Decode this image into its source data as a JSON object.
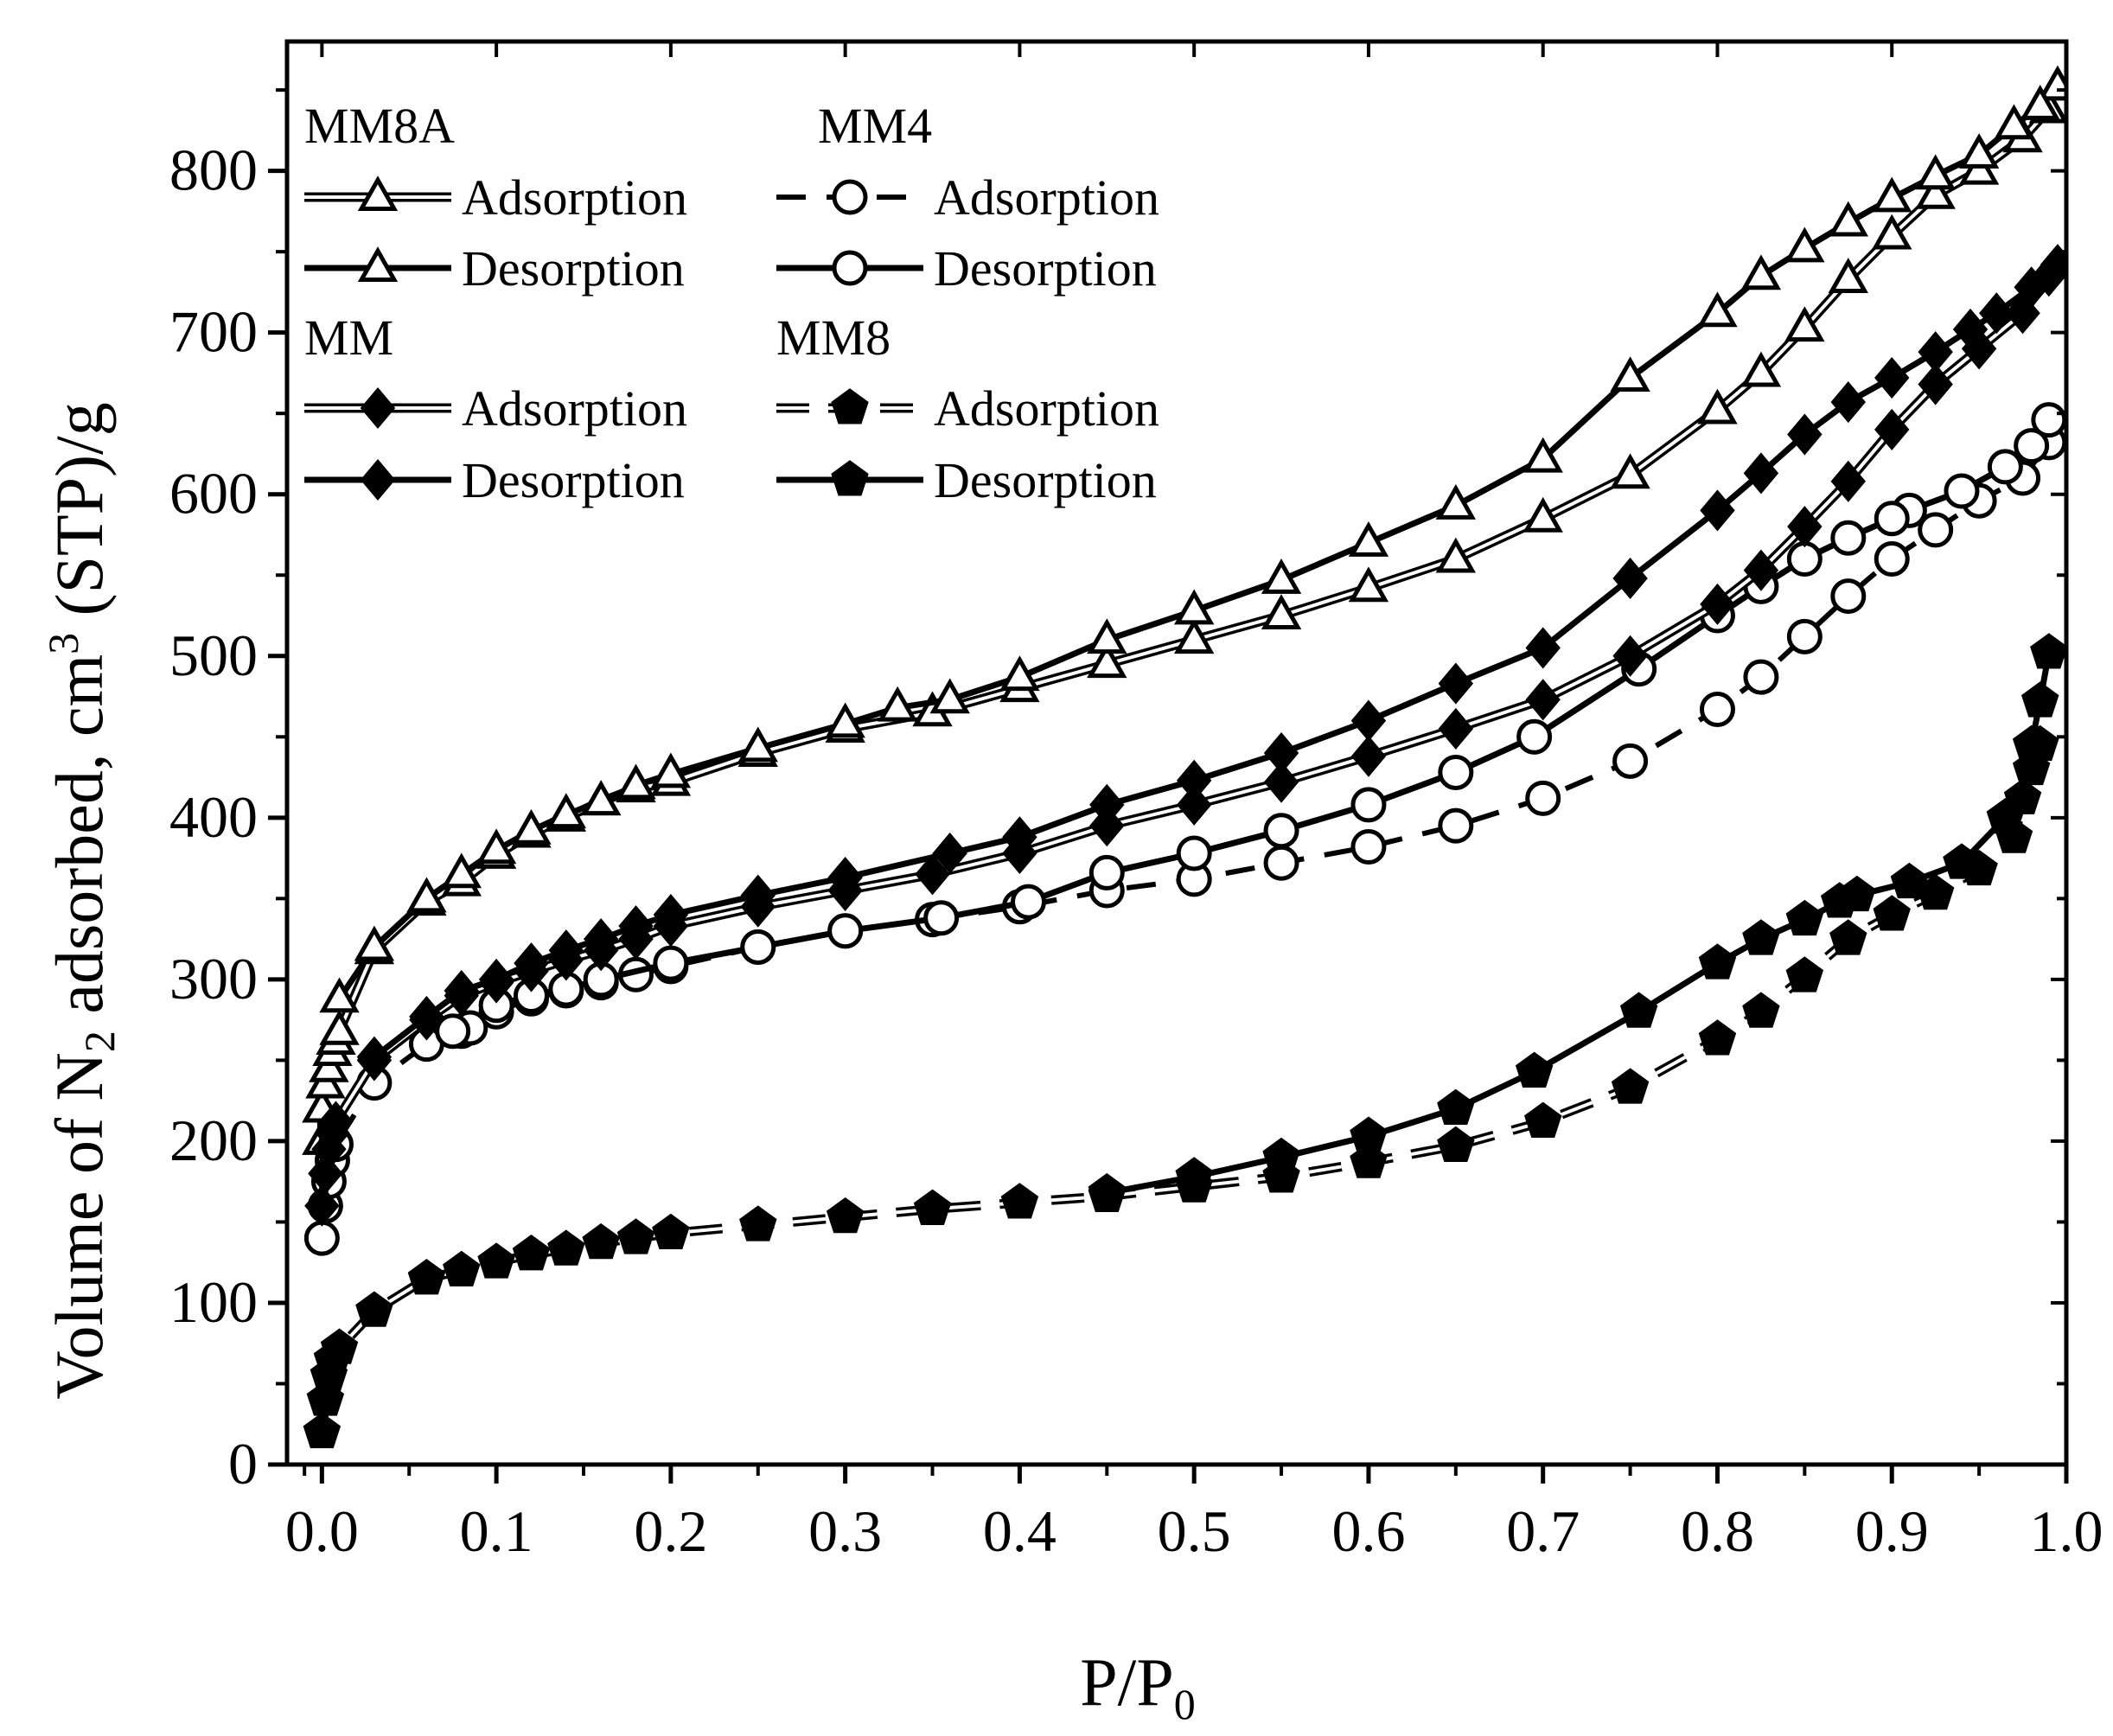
{
  "chart_data": {
    "type": "line",
    "title": "",
    "xlabel": {
      "main": "P/P",
      "sub": "0"
    },
    "ylabel": {
      "part1": "Volume of N",
      "sub": "2",
      "part2": " adsorbed, cm",
      "sup": "3",
      "part3": " (STP)/g"
    },
    "xlim": [
      -0.02,
      1.0
    ],
    "ylim": [
      0,
      880
    ],
    "xticks": [
      {
        "v": 0.0,
        "label": "0.0"
      },
      {
        "v": 0.1,
        "label": "0.1"
      },
      {
        "v": 0.2,
        "label": "0.2"
      },
      {
        "v": 0.3,
        "label": "0.3"
      },
      {
        "v": 0.4,
        "label": "0.4"
      },
      {
        "v": 0.5,
        "label": "0.5"
      },
      {
        "v": 0.6,
        "label": "0.6"
      },
      {
        "v": 0.7,
        "label": "0.7"
      },
      {
        "v": 0.8,
        "label": "0.8"
      },
      {
        "v": 0.9,
        "label": "0.9"
      },
      {
        "v": 1.0,
        "label": "1.0"
      }
    ],
    "yticks": [
      {
        "v": 0,
        "label": "0"
      },
      {
        "v": 100,
        "label": "100"
      },
      {
        "v": 200,
        "label": "200"
      },
      {
        "v": 300,
        "label": "300"
      },
      {
        "v": 400,
        "label": "400"
      },
      {
        "v": 500,
        "label": "500"
      },
      {
        "v": 600,
        "label": "600"
      },
      {
        "v": 700,
        "label": "700"
      },
      {
        "v": 800,
        "label": "800"
      }
    ],
    "legend_position": "top-left",
    "legend_groups": [
      {
        "title": "MM8A",
        "entries": [
          {
            "label": "Adsorption",
            "marker": "triangle-open",
            "line": "double"
          },
          {
            "label": "Desorption",
            "marker": "triangle-open",
            "line": "solid"
          }
        ]
      },
      {
        "title": "MM4",
        "entries": [
          {
            "label": "Adsorption",
            "marker": "circle-open",
            "line": "dashed"
          },
          {
            "label": "Desorption",
            "marker": "circle-open",
            "line": "solid"
          }
        ]
      },
      {
        "title": "MM",
        "entries": [
          {
            "label": "Adsorption",
            "marker": "diamond-filled",
            "line": "double"
          },
          {
            "label": "Desorption",
            "marker": "diamond-filled",
            "line": "solid"
          }
        ]
      },
      {
        "title": "MM8",
        "entries": [
          {
            "label": "Adsorption",
            "marker": "pentagon-filled",
            "line": "double-dashed"
          },
          {
            "label": "Desorption",
            "marker": "pentagon-filled",
            "line": "solid"
          }
        ]
      }
    ],
    "series": [
      {
        "name": "MM8A Adsorption",
        "marker": "triangle-open",
        "line": "double",
        "x": [
          0.0,
          0.0,
          0.002,
          0.004,
          0.006,
          0.008,
          0.01,
          0.03,
          0.06,
          0.08,
          0.1,
          0.12,
          0.14,
          0.16,
          0.18,
          0.2,
          0.25,
          0.3,
          0.35,
          0.4,
          0.45,
          0.5,
          0.55,
          0.6,
          0.65,
          0.7,
          0.75,
          0.8,
          0.825,
          0.85,
          0.875,
          0.9,
          0.925,
          0.95,
          0.975,
          0.99
        ],
        "y": [
          200,
          220,
          235,
          245,
          255,
          262,
          268,
          318,
          348,
          360,
          377,
          390,
          400,
          410,
          418,
          422,
          440,
          455,
          465,
          480,
          495,
          510,
          525,
          542,
          560,
          585,
          612,
          652,
          675,
          703,
          733,
          760,
          785,
          800,
          820,
          838
        ]
      },
      {
        "name": "MM8A Desorption",
        "marker": "triangle-open",
        "line": "solid",
        "x": [
          0.995,
          0.985,
          0.97,
          0.95,
          0.925,
          0.9,
          0.875,
          0.85,
          0.825,
          0.8,
          0.75,
          0.7,
          0.65,
          0.6,
          0.55,
          0.5,
          0.45,
          0.4,
          0.36,
          0.33,
          0.3,
          0.25,
          0.2,
          0.18,
          0.16,
          0.14,
          0.12,
          0.1,
          0.08,
          0.06,
          0.03,
          0.01
        ],
        "y": [
          852,
          840,
          828,
          810,
          797,
          783,
          768,
          752,
          735,
          712,
          672,
          622,
          593,
          570,
          547,
          528,
          510,
          487,
          473,
          468,
          458,
          443,
          427,
          420,
          410,
          402,
          392,
          380,
          365,
          350,
          320,
          288
        ]
      },
      {
        "name": "MM4 Adsorption",
        "marker": "circle-open",
        "line": "dashed",
        "x": [
          0.0,
          0.002,
          0.004,
          0.006,
          0.008,
          0.03,
          0.06,
          0.08,
          0.1,
          0.12,
          0.14,
          0.16,
          0.18,
          0.2,
          0.25,
          0.3,
          0.35,
          0.4,
          0.45,
          0.5,
          0.55,
          0.6,
          0.65,
          0.7,
          0.75,
          0.8,
          0.825,
          0.85,
          0.875,
          0.9,
          0.925,
          0.95,
          0.975,
          0.99
        ],
        "y": [
          140,
          160,
          175,
          188,
          198,
          236,
          260,
          268,
          280,
          288,
          293,
          298,
          303,
          308,
          320,
          330,
          337,
          345,
          355,
          362,
          372,
          382,
          395,
          412,
          435,
          467,
          487,
          512,
          537,
          560,
          578,
          596,
          610,
          632
        ]
      },
      {
        "name": "MM4 Desorption",
        "marker": "circle-open",
        "line": "solid",
        "x": [
          0.99,
          0.98,
          0.965,
          0.94,
          0.91,
          0.9,
          0.875,
          0.85,
          0.825,
          0.8,
          0.755,
          0.695,
          0.65,
          0.6,
          0.55,
          0.5,
          0.45,
          0.405,
          0.355,
          0.3,
          0.25,
          0.2,
          0.16,
          0.14,
          0.12,
          0.1,
          0.085,
          0.075
        ],
        "y": [
          646,
          630,
          617,
          602,
          590,
          585,
          573,
          560,
          543,
          525,
          492,
          450,
          428,
          408,
          392,
          378,
          366,
          348,
          338,
          330,
          320,
          310,
          300,
          294,
          290,
          284,
          270,
          268
        ]
      },
      {
        "name": "MM Adsorption",
        "marker": "diamond-filled",
        "line": "double",
        "x": [
          0.0,
          0.002,
          0.004,
          0.006,
          0.008,
          0.03,
          0.06,
          0.08,
          0.1,
          0.12,
          0.14,
          0.16,
          0.18,
          0.2,
          0.25,
          0.3,
          0.35,
          0.4,
          0.45,
          0.5,
          0.55,
          0.6,
          0.65,
          0.7,
          0.75,
          0.8,
          0.825,
          0.85,
          0.875,
          0.9,
          0.925,
          0.95,
          0.975,
          0.99
        ],
        "y": [
          160,
          180,
          195,
          205,
          212,
          250,
          275,
          290,
          298,
          305,
          312,
          318,
          325,
          333,
          345,
          355,
          365,
          378,
          395,
          408,
          422,
          438,
          455,
          473,
          500,
          532,
          553,
          580,
          608,
          640,
          668,
          690,
          712,
          735
        ]
      },
      {
        "name": "MM Desorption",
        "marker": "diamond-filled",
        "line": "solid",
        "x": [
          0.995,
          0.98,
          0.96,
          0.945,
          0.925,
          0.9,
          0.875,
          0.85,
          0.825,
          0.8,
          0.75,
          0.7,
          0.65,
          0.6,
          0.55,
          0.5,
          0.45,
          0.4,
          0.36,
          0.3,
          0.25,
          0.2,
          0.18,
          0.16,
          0.14,
          0.12,
          0.1,
          0.08,
          0.06,
          0.03
        ],
        "y": [
          742,
          728,
          712,
          702,
          688,
          672,
          657,
          637,
          613,
          590,
          548,
          505,
          483,
          460,
          440,
          423,
          408,
          388,
          378,
          363,
          352,
          340,
          333,
          325,
          318,
          310,
          300,
          293,
          277,
          252
        ]
      },
      {
        "name": "MM8 Adsorption",
        "marker": "pentagon-filled",
        "line": "double-dashed",
        "x": [
          0.0,
          0.002,
          0.004,
          0.006,
          0.01,
          0.03,
          0.06,
          0.08,
          0.1,
          0.12,
          0.14,
          0.16,
          0.18,
          0.2,
          0.25,
          0.3,
          0.35,
          0.4,
          0.45,
          0.5,
          0.55,
          0.6,
          0.65,
          0.7,
          0.75,
          0.8,
          0.825,
          0.85,
          0.875,
          0.9,
          0.925,
          0.95,
          0.97,
          0.98,
          0.985
        ],
        "y": [
          20,
          40,
          55,
          65,
          72,
          95,
          115,
          120,
          125,
          130,
          133,
          137,
          140,
          143,
          148,
          153,
          158,
          162,
          166,
          172,
          178,
          187,
          197,
          212,
          233,
          263,
          280,
          302,
          325,
          340,
          353,
          368,
          388,
          430,
          445
        ]
      },
      {
        "name": "MM8 Desorption",
        "marker": "pentagon-filled",
        "line": "solid",
        "x": [
          0.99,
          0.985,
          0.98,
          0.975,
          0.965,
          0.94,
          0.91,
          0.88,
          0.87,
          0.85,
          0.825,
          0.8,
          0.755,
          0.695,
          0.65,
          0.6,
          0.55,
          0.5,
          0.45
        ],
        "y": [
          502,
          472,
          445,
          412,
          400,
          372,
          360,
          352,
          348,
          337,
          325,
          310,
          280,
          243,
          220,
          203,
          190,
          178,
          168
        ]
      }
    ]
  }
}
